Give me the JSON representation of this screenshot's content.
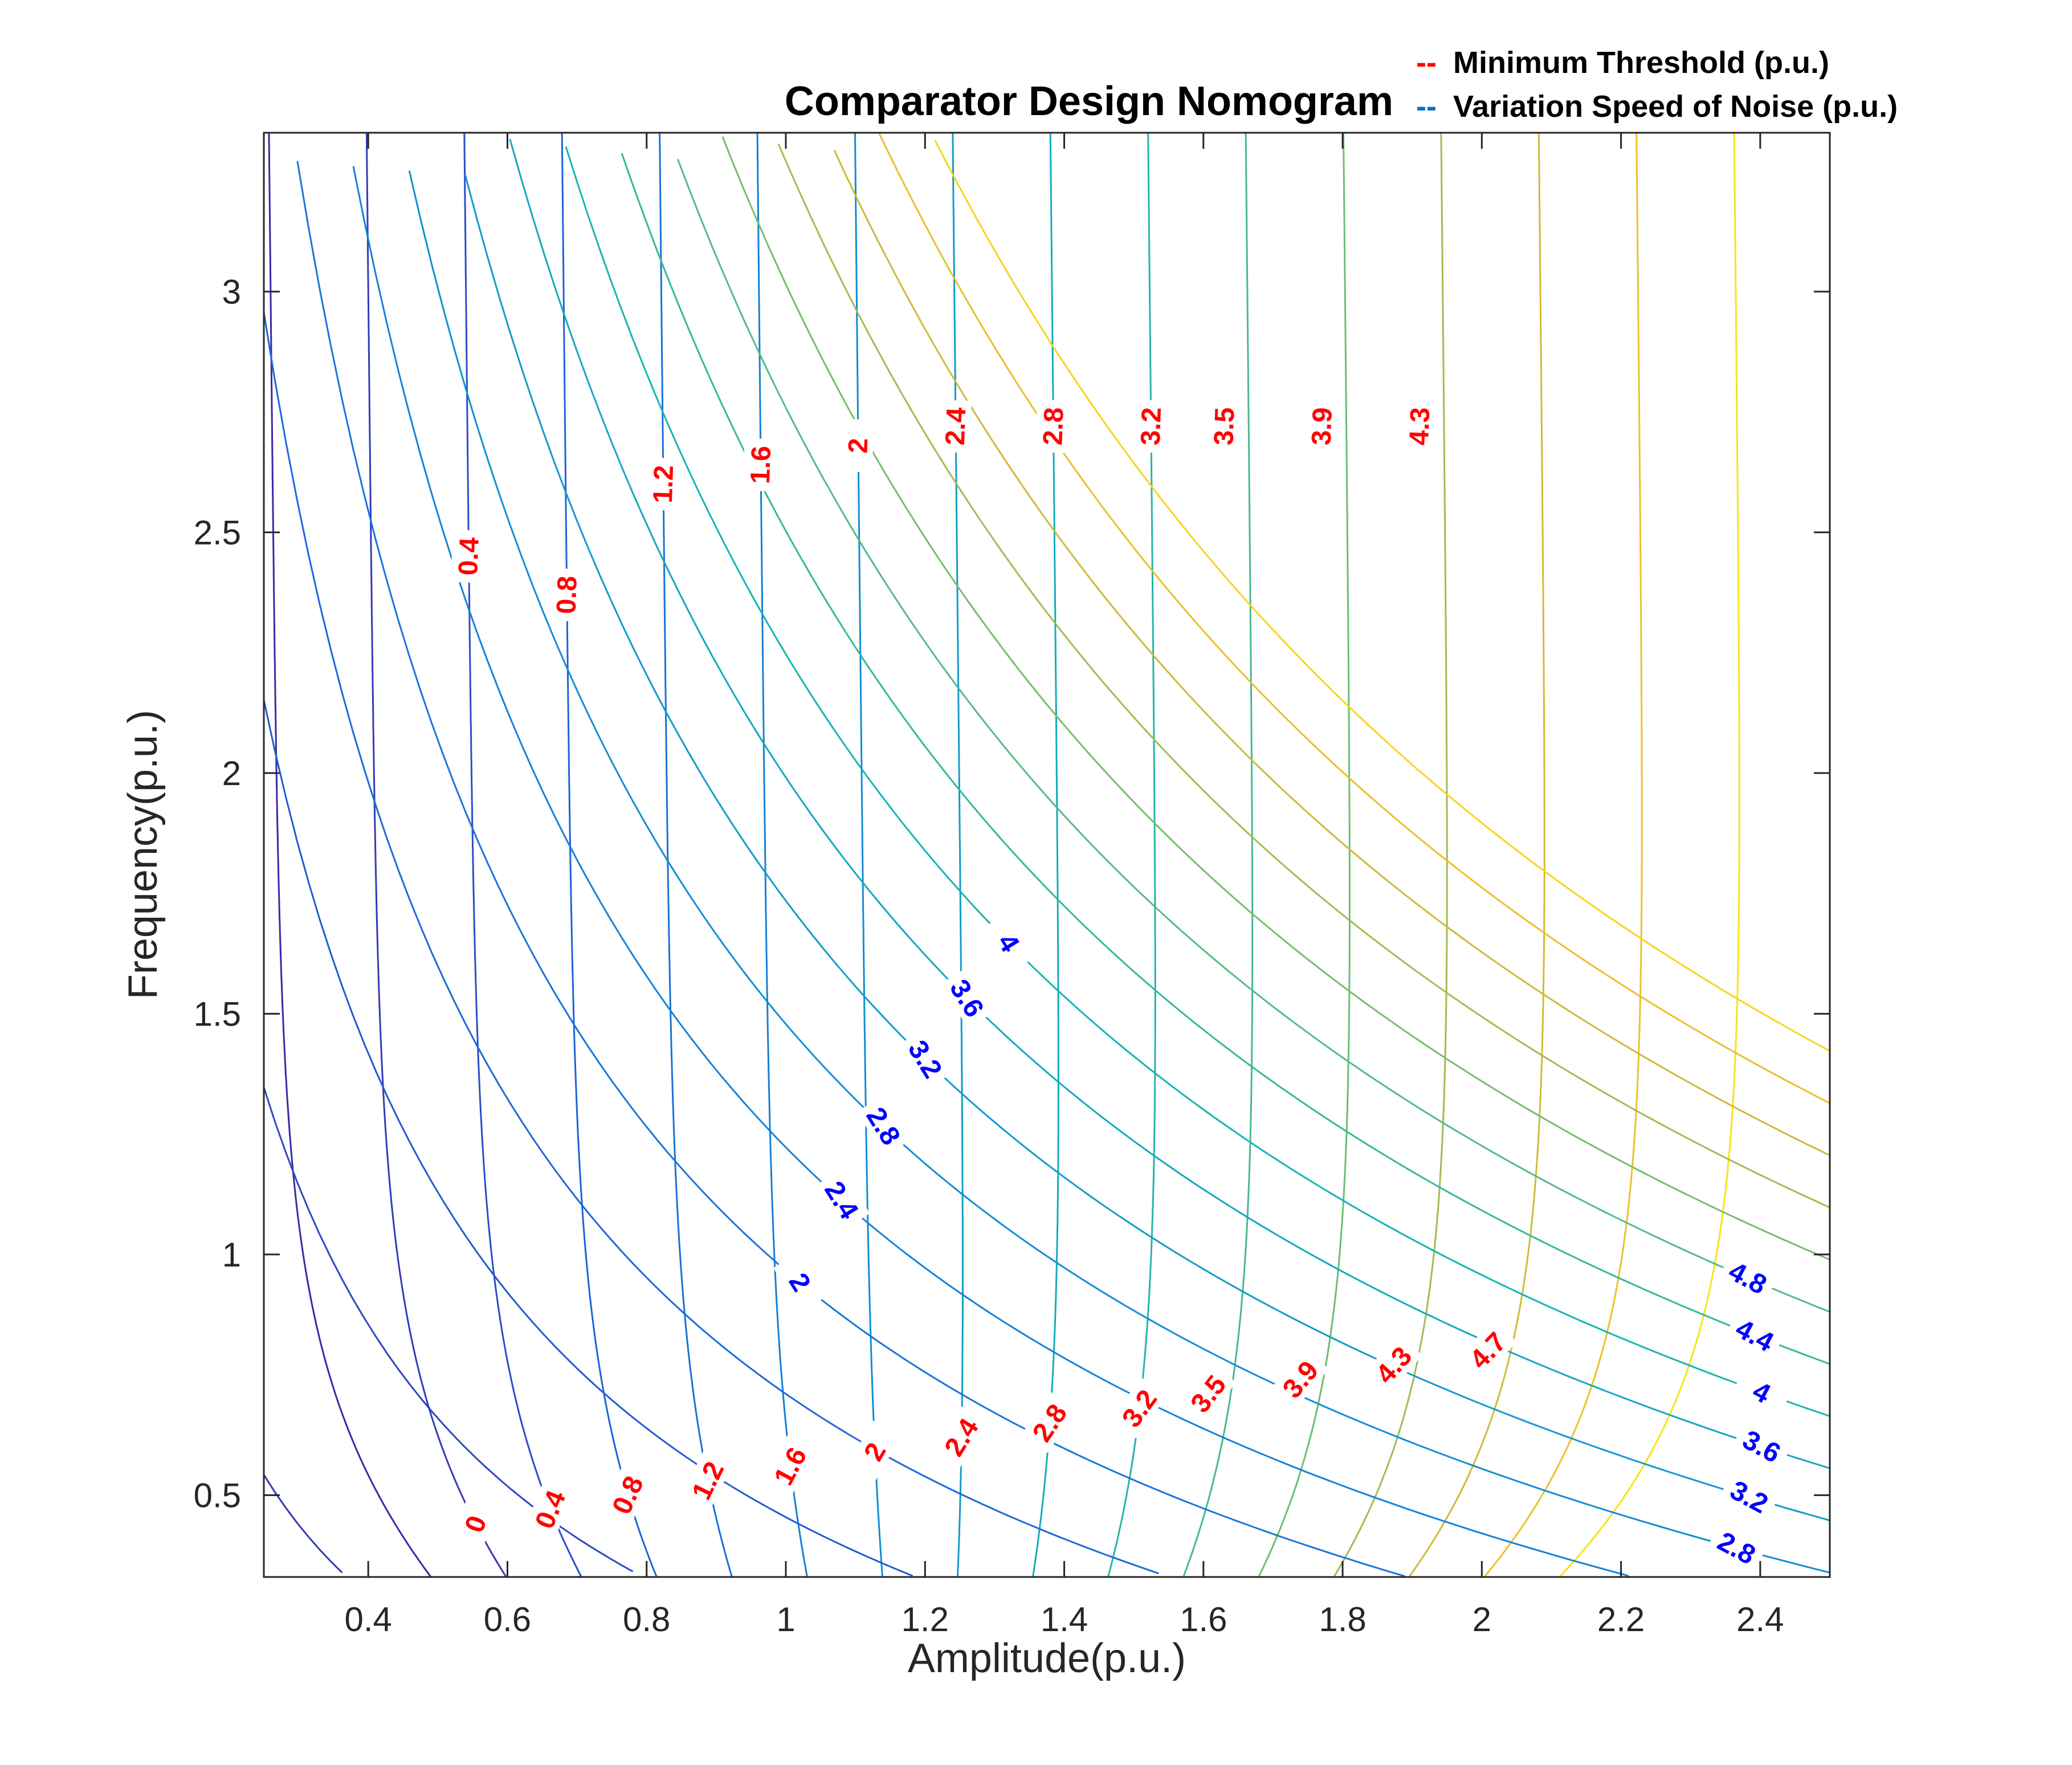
{
  "chart_data": {
    "type": "contour",
    "title": "Comparator Design Nomogram",
    "xlabel": "Amplitude(p.u.)",
    "ylabel": "Frequency(p.u.)",
    "xlim": [
      0.25,
      2.5
    ],
    "ylim": [
      0.33,
      3.33
    ],
    "grid": false,
    "legend_position": "top-right",
    "x_ticks": [
      "0.4",
      "0.6",
      "0.8",
      "1",
      "1.2",
      "1.4",
      "1.6",
      "1.8",
      "2",
      "2.2",
      "2.4"
    ],
    "y_ticks": [
      "0.5",
      "1",
      "1.5",
      "2",
      "2.5",
      "3"
    ],
    "legend": [
      {
        "marker": "--",
        "label": "Minimum Threshold (p.u.)",
        "color": "#ff0000"
      },
      {
        "marker": "--",
        "label": "Variation Speed of Noise (p.u.)",
        "color": "#0072bd"
      }
    ],
    "series": [
      {
        "name": "Minimum Threshold (p.u.)",
        "label_color": "#ff0000",
        "levels": [
          0,
          0.4,
          0.8,
          1.2,
          1.6,
          2,
          2.4,
          2.8,
          3.2,
          3.5,
          3.9,
          4.3,
          4.7
        ],
        "level_labels": [
          "0",
          "0.4",
          "0.8",
          "1.2",
          "1.6",
          "2",
          "2.4",
          "2.8",
          "3.2",
          "3.5",
          "3.9",
          "4.3",
          "4.7"
        ]
      },
      {
        "name": "Variation Speed of Noise (p.u.)",
        "label_color": "#0000ff",
        "levels": [
          2,
          2.4,
          2.8,
          3.2,
          3.6,
          4,
          4.4,
          4.8
        ],
        "level_labels": [
          "2",
          "2.4",
          "2.8",
          "3.2",
          "3.6",
          "4",
          "4.4",
          "4.8"
        ]
      }
    ],
    "colors": {
      "red_label": "#ff0000",
      "blue_label": "#0000ff",
      "legend_blue": "#0072bd",
      "axis": "#262626"
    }
  }
}
